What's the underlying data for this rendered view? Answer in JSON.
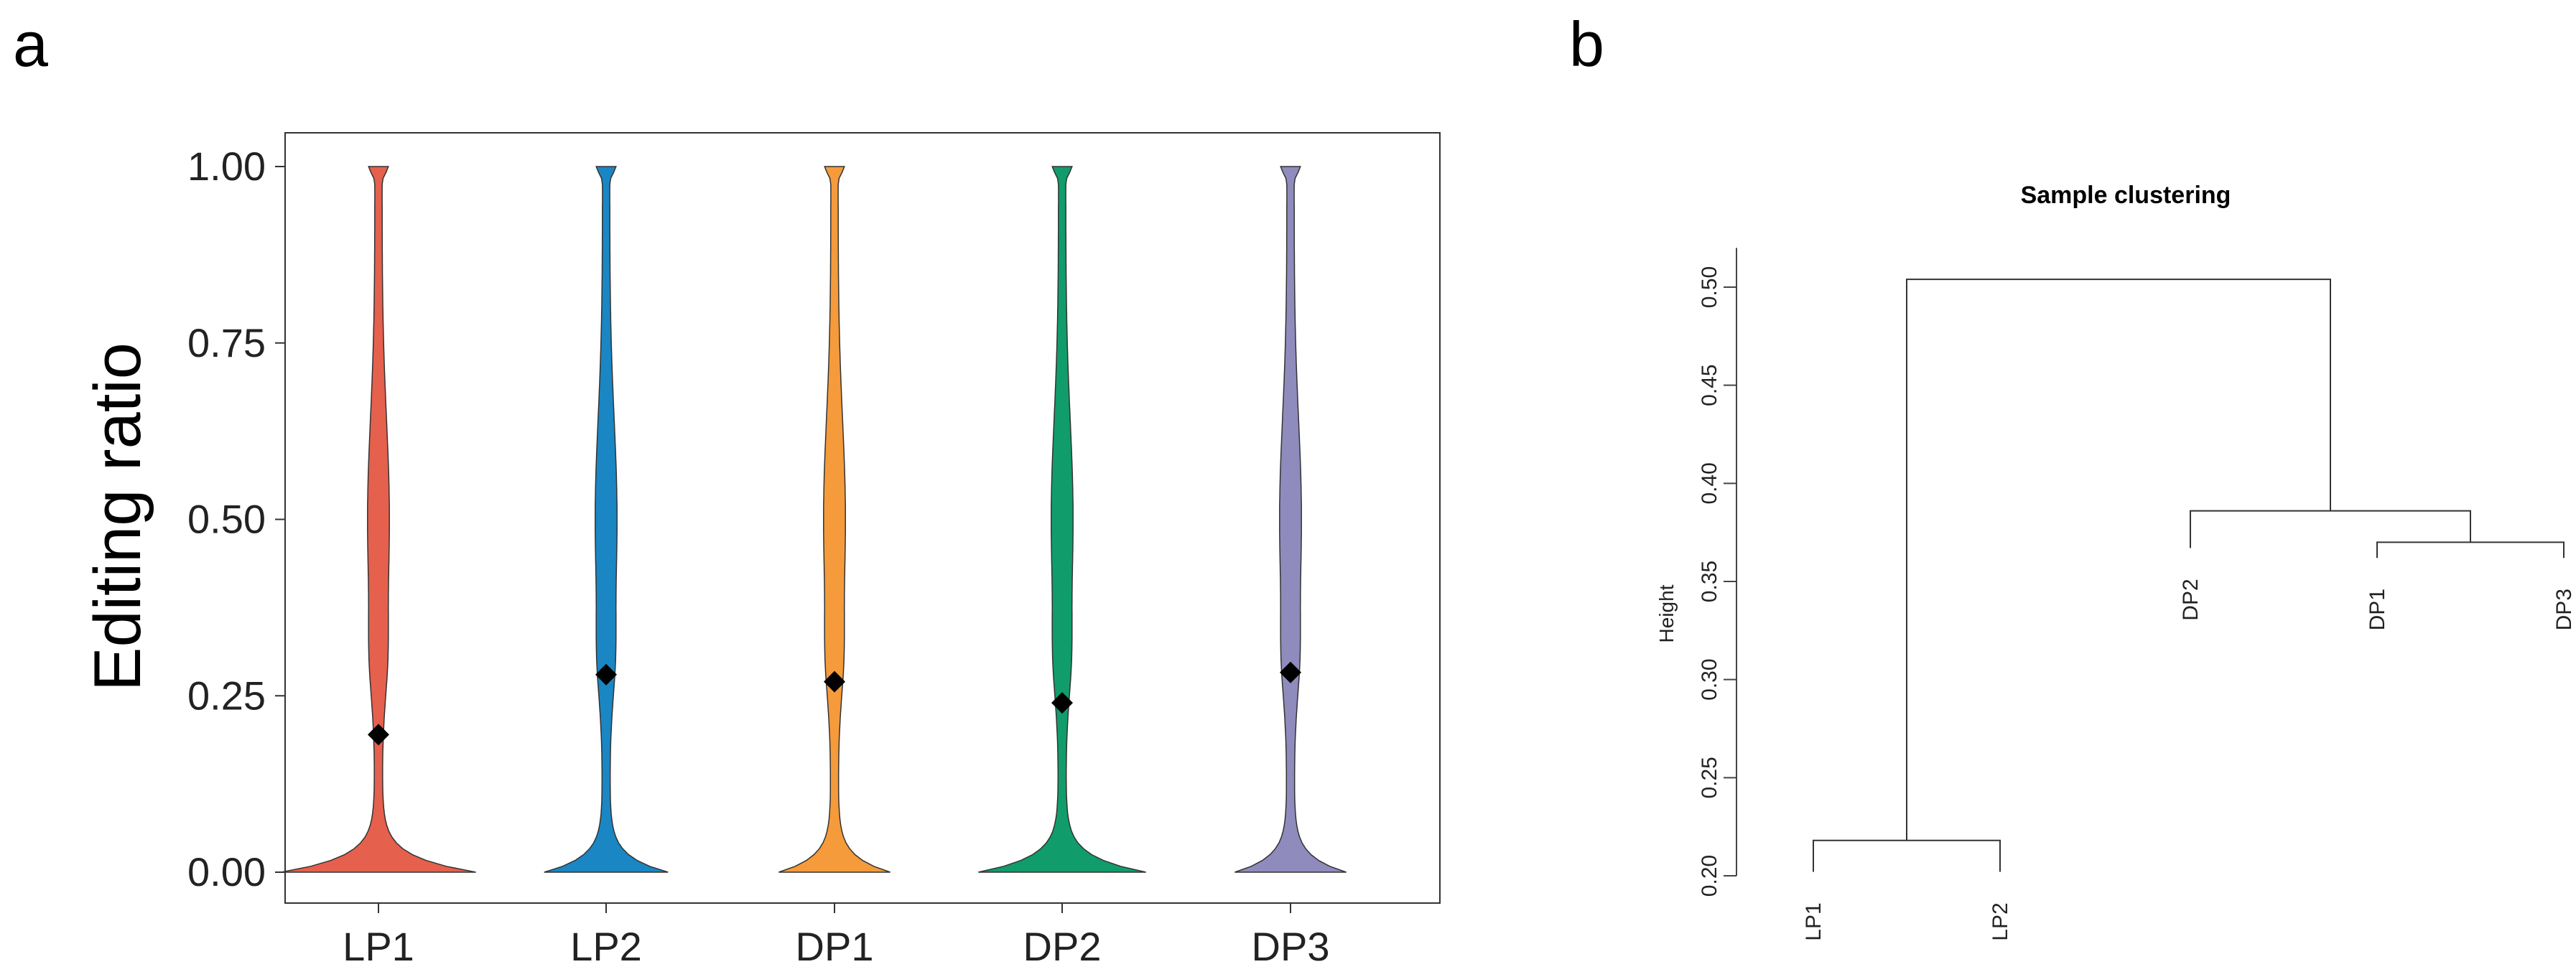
{
  "panel_labels": {
    "a": "a",
    "b": "b"
  },
  "chart_data": [
    {
      "type": "violin",
      "panel": "a",
      "title": "",
      "xlabel": "",
      "ylabel": "Editing ratio",
      "ylim": [
        0,
        1
      ],
      "yticks": [
        "0.00",
        "0.25",
        "0.50",
        "0.75",
        "1.00"
      ],
      "categories": [
        "LP1",
        "LP2",
        "DP1",
        "DP2",
        "DP3"
      ],
      "colors": [
        "#e5604d",
        "#1a86c4",
        "#f59b3b",
        "#119c6b",
        "#8f8bbd"
      ],
      "means": [
        0.195,
        0.28,
        0.27,
        0.24,
        0.283
      ],
      "max_half_width": [
        0.9,
        0.56,
        0.5,
        0.77,
        0.5
      ]
    },
    {
      "type": "dendrogram",
      "panel": "b",
      "title": "Sample clustering",
      "xlabel": "",
      "ylabel": "Height",
      "ylim": [
        0.2,
        0.52
      ],
      "yticks": [
        "0.20",
        "0.25",
        "0.30",
        "0.35",
        "0.40",
        "0.45",
        "0.50"
      ],
      "leaves": [
        {
          "label": "LP1",
          "height": 0.19
        },
        {
          "label": "LP2",
          "height": 0.19
        },
        {
          "label": "DP2",
          "height": 0.355
        },
        {
          "label": "DP1",
          "height": 0.35
        },
        {
          "label": "DP3",
          "height": 0.35
        }
      ],
      "merges": [
        {
          "left": "LP1",
          "right": "LP2",
          "height": 0.218
        },
        {
          "left": "DP1",
          "right": "DP3",
          "height": 0.37
        },
        {
          "left": "DP2",
          "right": "DP1+DP3",
          "height": 0.386
        },
        {
          "left": "LP1+LP2",
          "right": "DP2+DP1+DP3",
          "height": 0.504
        }
      ]
    }
  ]
}
